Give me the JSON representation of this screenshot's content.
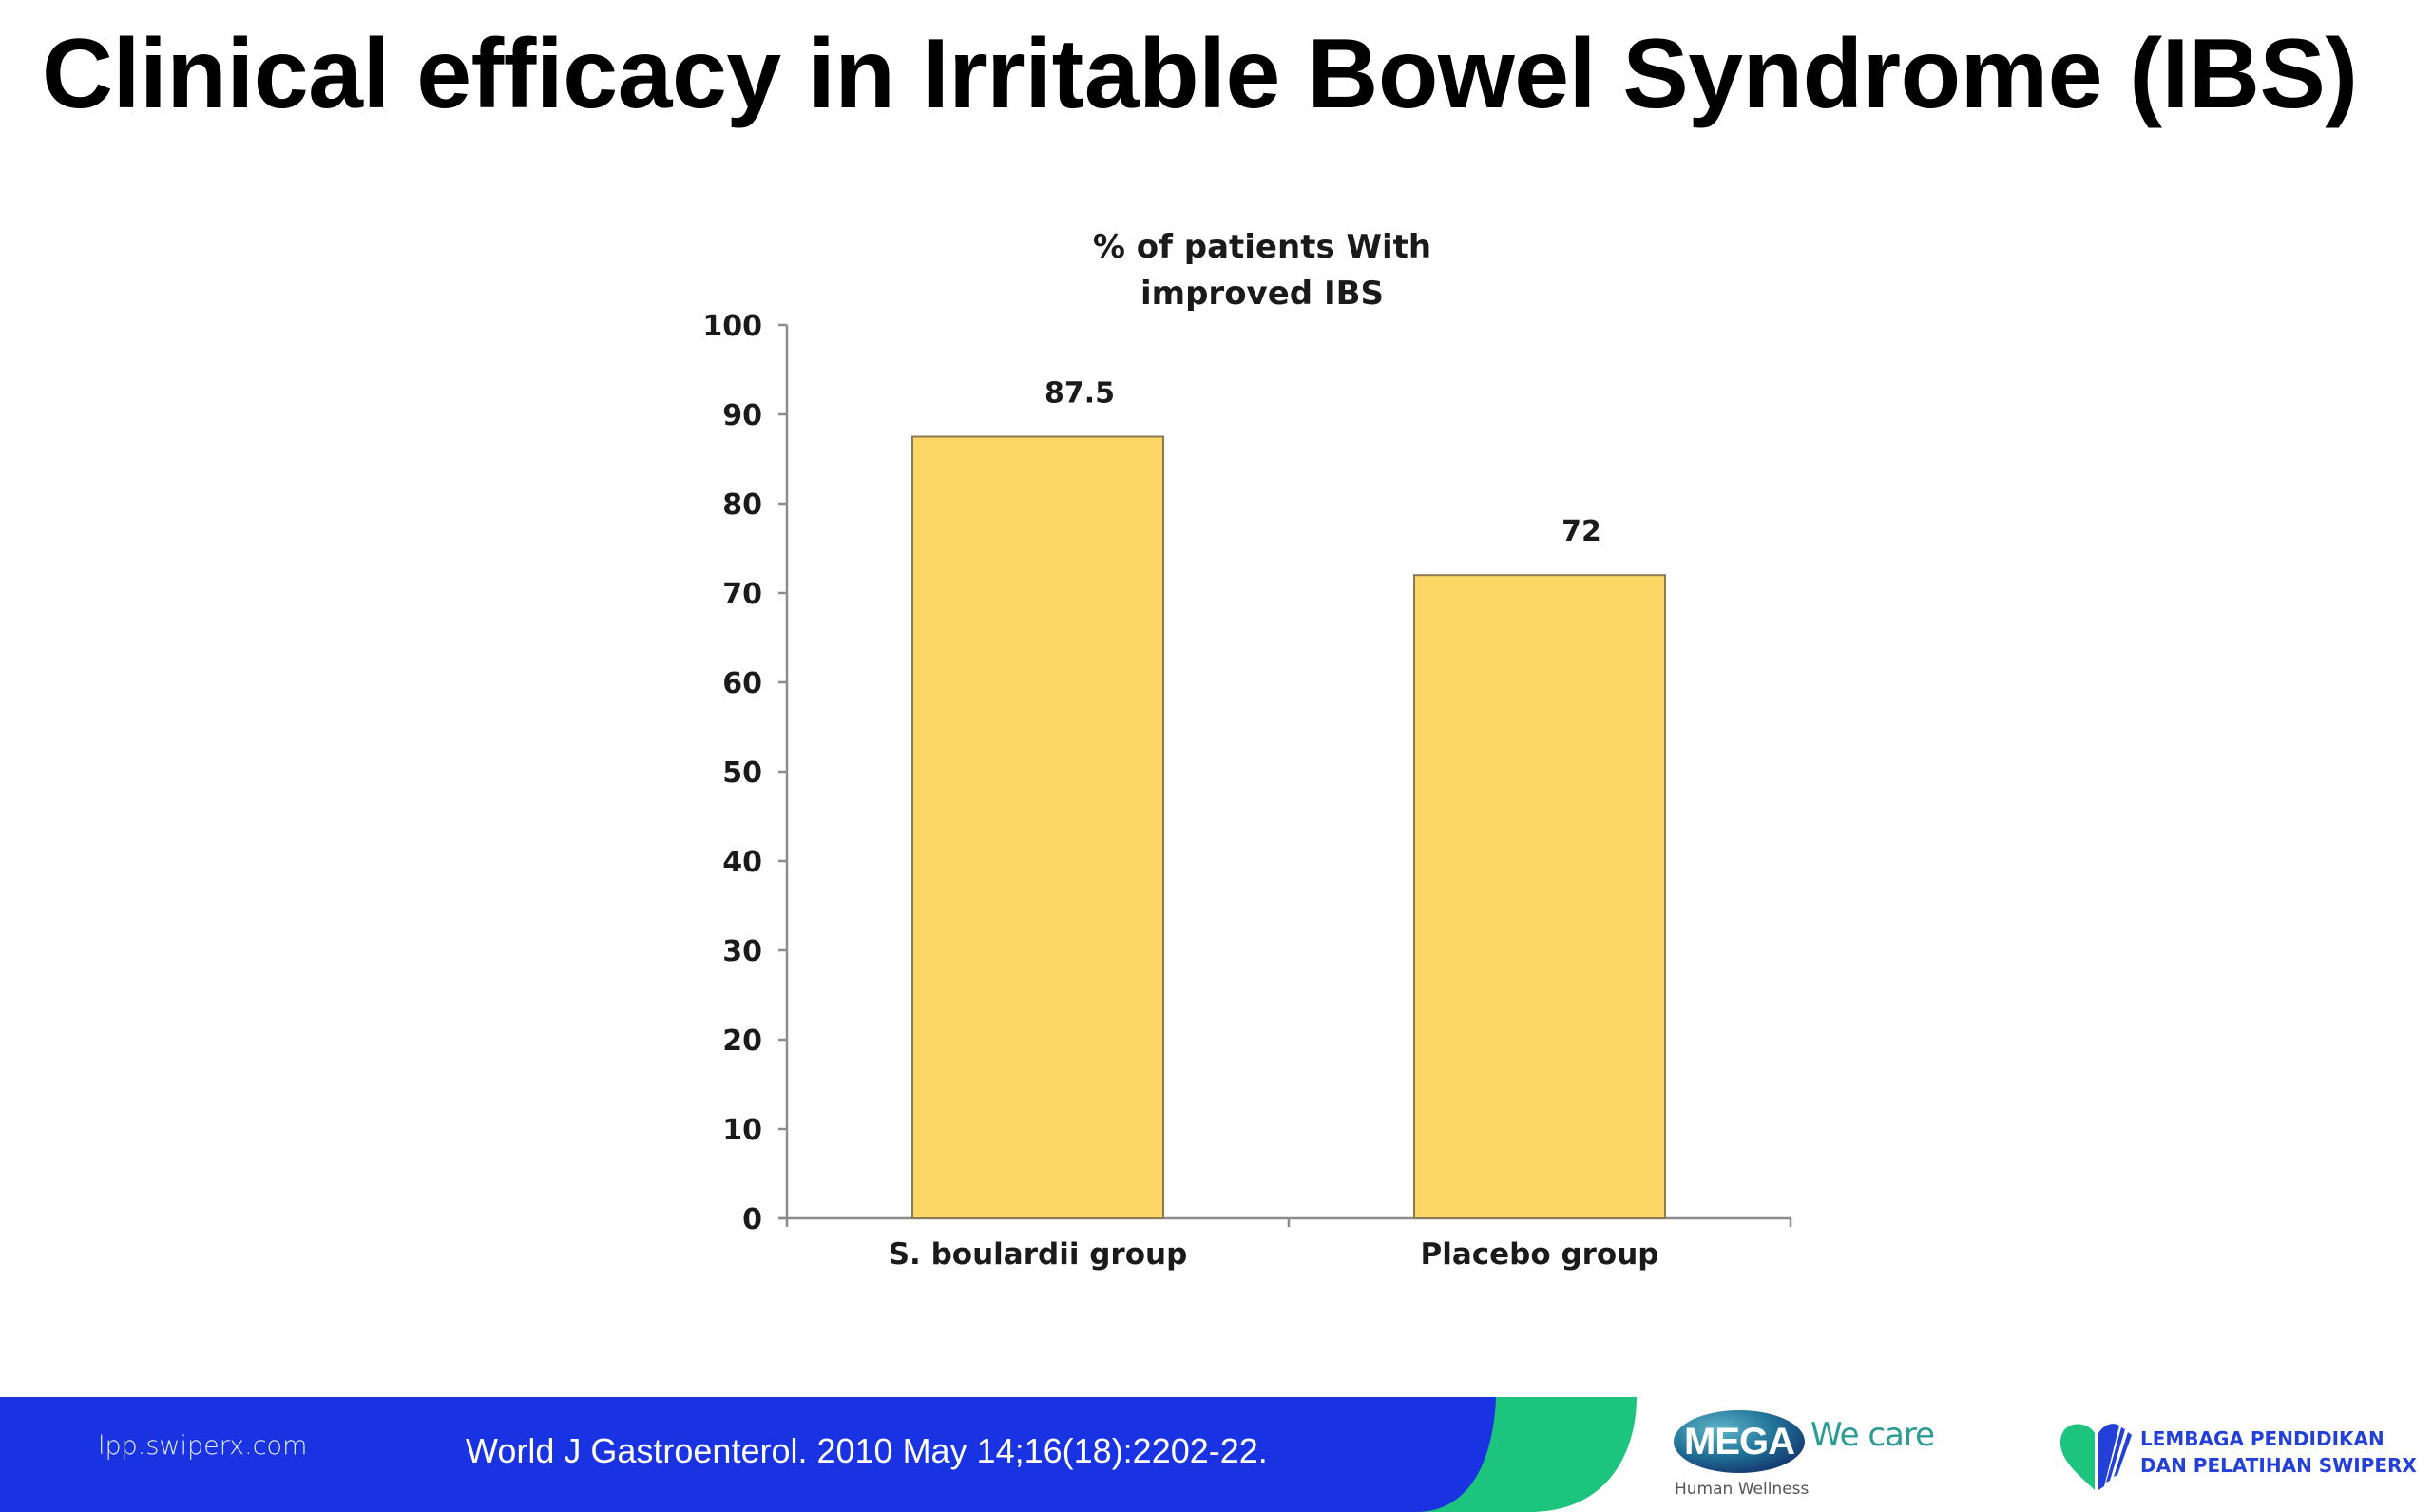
{
  "slide": {
    "title": "Clinical efficacy in Irritable Bowel Syndrome (IBS)"
  },
  "chart_data": {
    "type": "bar",
    "title_lines": [
      "% of patients With",
      "improved IBS"
    ],
    "categories": [
      "S. boulardii group",
      "Placebo group"
    ],
    "values": [
      87.5,
      72
    ],
    "data_labels": [
      "87.5",
      "72"
    ],
    "xlabel": "",
    "ylabel": "",
    "ylim": [
      0,
      100
    ],
    "yticks": [
      0,
      10,
      20,
      30,
      40,
      50,
      60,
      70,
      80,
      90,
      100
    ],
    "grid": false,
    "legend": "none",
    "bar_color": "#FDD766",
    "bar_edge_color": "#8a7a55",
    "axis_color": "#8c8c8c"
  },
  "footer": {
    "url": "lpp.swiperx.com",
    "citation": "World J Gastroenterol. 2010 May 14;16(18):2202-22.",
    "colors": {
      "blue": "#1A33E2",
      "green": "#1CC47D"
    },
    "mega_logo": {
      "brand": "MEGA",
      "tagline": "We care",
      "subtitle": "Human Wellness"
    },
    "lp_logo": {
      "icon": "heart-book-icon",
      "line1": "LEMBAGA PENDIDIKAN",
      "line2": "DAN PELATIHAN SWIPERX"
    }
  }
}
